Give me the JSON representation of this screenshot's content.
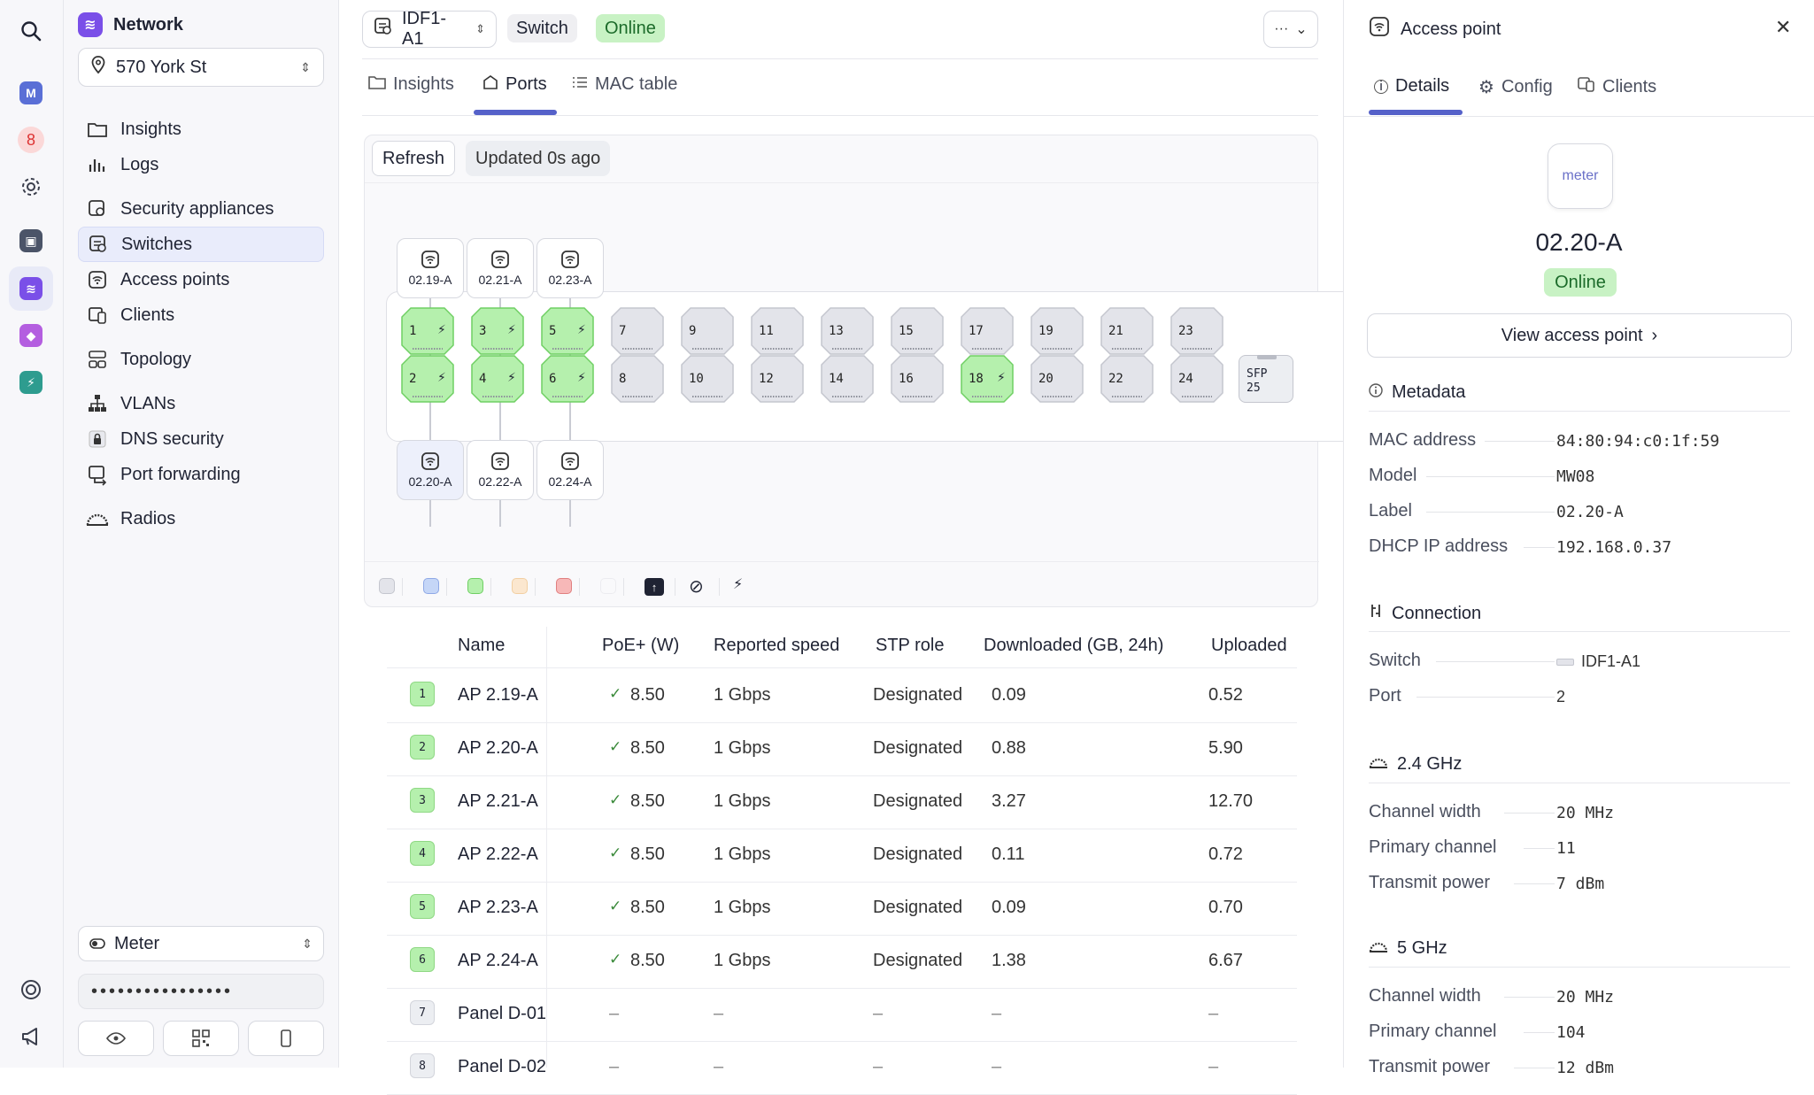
{
  "sidebar": {
    "network_title": "Network",
    "location": "570 York St",
    "items": [
      {
        "label": "Insights"
      },
      {
        "label": "Logs"
      },
      {
        "label": "Security appliances"
      },
      {
        "label": "Switches"
      },
      {
        "label": "Access points"
      },
      {
        "label": "Clients"
      },
      {
        "label": "Topology"
      },
      {
        "label": "VLANs"
      },
      {
        "label": "DNS security"
      },
      {
        "label": "Port forwarding"
      },
      {
        "label": "Radios"
      }
    ],
    "company": "Meter",
    "password_mask": "••••••••••••••••"
  },
  "rail": {
    "badge_m": "M",
    "badge_8": "8"
  },
  "header": {
    "device": "IDF1-A1",
    "type_badge": "Switch",
    "status_badge": "Online",
    "more": "···"
  },
  "tabs": [
    {
      "label": "Insights"
    },
    {
      "label": "Ports"
    },
    {
      "label": "MAC table"
    }
  ],
  "ports_panel": {
    "refresh": "Refresh",
    "updated": "Updated 0s ago",
    "top_aps": [
      "02.19-A",
      "02.21-A",
      "02.23-A"
    ],
    "bottom_aps": [
      "02.20-A",
      "02.22-A",
      "02.24-A"
    ],
    "top_ports": [
      "1",
      "3",
      "5",
      "7",
      "9",
      "11",
      "13",
      "15",
      "17",
      "19",
      "21",
      "23"
    ],
    "bottom_ports": [
      "2",
      "4",
      "6",
      "8",
      "10",
      "12",
      "14",
      "16",
      "18",
      "20",
      "22",
      "24"
    ],
    "active_ports": [
      "1",
      "2",
      "3",
      "4",
      "5",
      "6",
      "18"
    ],
    "sfp_label": "SFP",
    "sfp_num": "25"
  },
  "table": {
    "headers": [
      "Name",
      "PoE+ (W)",
      "Reported speed",
      "STP role",
      "Downloaded (GB, 24h)",
      "Uploaded"
    ],
    "rows": [
      {
        "port": "1",
        "name": "AP 2.19-A",
        "poe": "8.50",
        "speed": "1 Gbps",
        "stp": "Designated",
        "down": "0.09",
        "up": "0.52",
        "active": true
      },
      {
        "port": "2",
        "name": "AP 2.20-A",
        "poe": "8.50",
        "speed": "1 Gbps",
        "stp": "Designated",
        "down": "0.88",
        "up": "5.90",
        "active": true
      },
      {
        "port": "3",
        "name": "AP 2.21-A",
        "poe": "8.50",
        "speed": "1 Gbps",
        "stp": "Designated",
        "down": "3.27",
        "up": "12.70",
        "active": true
      },
      {
        "port": "4",
        "name": "AP 2.22-A",
        "poe": "8.50",
        "speed": "1 Gbps",
        "stp": "Designated",
        "down": "0.11",
        "up": "0.72",
        "active": true
      },
      {
        "port": "5",
        "name": "AP 2.23-A",
        "poe": "8.50",
        "speed": "1 Gbps",
        "stp": "Designated",
        "down": "0.09",
        "up": "0.70",
        "active": true
      },
      {
        "port": "6",
        "name": "AP 2.24-A",
        "poe": "8.50",
        "speed": "1 Gbps",
        "stp": "Designated",
        "down": "1.38",
        "up": "6.67",
        "active": true
      },
      {
        "port": "7",
        "name": "Panel D-01",
        "poe": "–",
        "speed": "–",
        "stp": "–",
        "down": "–",
        "up": "–",
        "active": false
      },
      {
        "port": "8",
        "name": "Panel D-02",
        "poe": "–",
        "speed": "–",
        "stp": "–",
        "down": "–",
        "up": "–",
        "active": false
      }
    ]
  },
  "right": {
    "title": "Access point",
    "tabs": [
      {
        "label": "Details"
      },
      {
        "label": "Config"
      },
      {
        "label": "Clients"
      }
    ],
    "logo_text": "meter",
    "name": "02.20-A",
    "status": "Online",
    "view_btn": "View access point",
    "metadata_title": "Metadata",
    "metadata": [
      {
        "k": "MAC address",
        "v": "84:80:94:c0:1f:59"
      },
      {
        "k": "Model",
        "v": "MW08"
      },
      {
        "k": "Label",
        "v": "02.20-A"
      },
      {
        "k": "DHCP IP address",
        "v": "192.168.0.37"
      }
    ],
    "connection_title": "Connection",
    "connection": [
      {
        "k": "Switch",
        "v": "IDF1-A1"
      },
      {
        "k": "Port",
        "v": "2"
      }
    ],
    "band24_title": "2.4 GHz",
    "band24": [
      {
        "k": "Channel width",
        "v": "20 MHz"
      },
      {
        "k": "Primary channel",
        "v": "11"
      },
      {
        "k": "Transmit power",
        "v": "7 dBm"
      }
    ],
    "band5_title": "5 GHz",
    "band5": [
      {
        "k": "Channel width",
        "v": "20 MHz"
      },
      {
        "k": "Primary channel",
        "v": "104"
      },
      {
        "k": "Transmit power",
        "v": "12 dBm"
      }
    ]
  },
  "colors": {
    "accent": "#5561c9",
    "online_bg": "#c8f2c4",
    "port_active": "#b5f0ad",
    "port_idle": "#e3e4ea"
  }
}
